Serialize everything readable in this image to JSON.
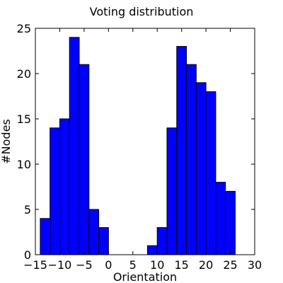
{
  "chart_data": {
    "type": "bar",
    "title": "Voting distribution",
    "xlabel": "Orientation",
    "ylabel": "#Nodes",
    "xlim": [
      -15,
      30
    ],
    "ylim": [
      0,
      25
    ],
    "xticks": [
      "−15",
      "−10",
      "−5",
      "0",
      "5",
      "10",
      "15",
      "20",
      "25",
      "30"
    ],
    "yticks": [
      "0",
      "5",
      "10",
      "15",
      "20",
      "25"
    ],
    "bar_color": "#0000ff",
    "bins": [
      {
        "x0": -14,
        "x1": -12,
        "value": 4
      },
      {
        "x0": -12,
        "x1": -10,
        "value": 14
      },
      {
        "x0": -10,
        "x1": -8,
        "value": 15
      },
      {
        "x0": -8,
        "x1": -6,
        "value": 24
      },
      {
        "x0": -6,
        "x1": -4,
        "value": 21
      },
      {
        "x0": -4,
        "x1": -2,
        "value": 5
      },
      {
        "x0": -2,
        "x1": 0,
        "value": 3
      },
      {
        "x0": 0,
        "x1": 2,
        "value": 0
      },
      {
        "x0": 2,
        "x1": 4,
        "value": 0
      },
      {
        "x0": 4,
        "x1": 6,
        "value": 0
      },
      {
        "x0": 6,
        "x1": 8,
        "value": 0
      },
      {
        "x0": 8,
        "x1": 10,
        "value": 1
      },
      {
        "x0": 10,
        "x1": 12,
        "value": 3
      },
      {
        "x0": 12,
        "x1": 14,
        "value": 14
      },
      {
        "x0": 14,
        "x1": 16,
        "value": 23
      },
      {
        "x0": 16,
        "x1": 18,
        "value": 21
      },
      {
        "x0": 18,
        "x1": 20,
        "value": 19
      },
      {
        "x0": 20,
        "x1": 22,
        "value": 18
      },
      {
        "x0": 22,
        "x1": 24,
        "value": 8
      },
      {
        "x0": 24,
        "x1": 26,
        "value": 7
      }
    ]
  }
}
